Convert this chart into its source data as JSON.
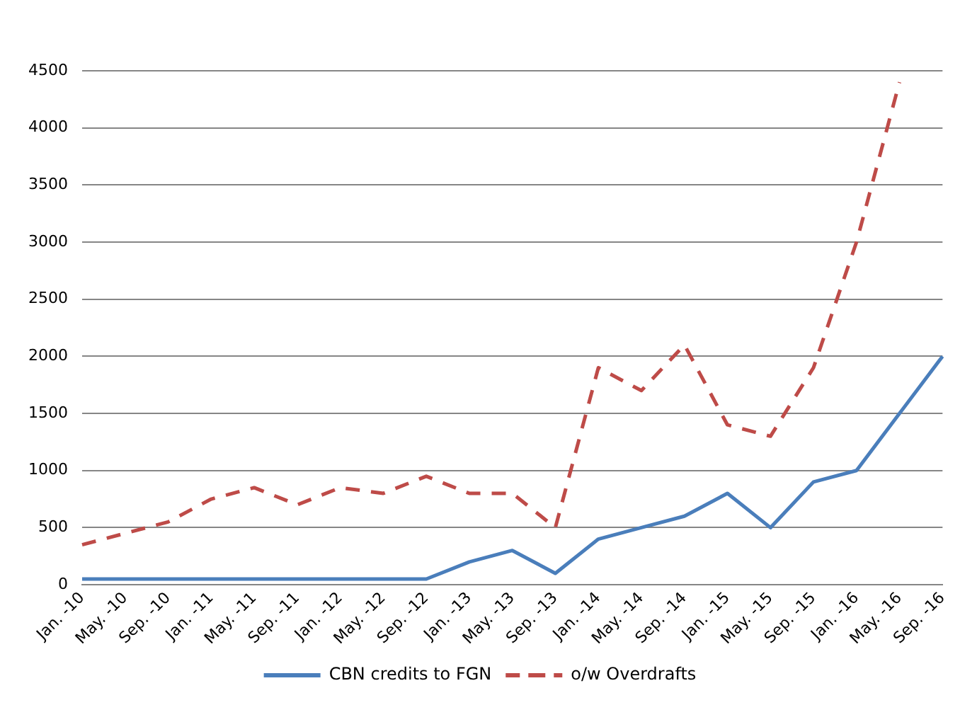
{
  "chart_data": {
    "type": "line",
    "categories": [
      "Jan. -10",
      "May. -10",
      "Sep. -10",
      "Jan. -11",
      "May. -11",
      "Sep. -11",
      "Jan. -12",
      "May. -12",
      "Sep. -12",
      "Jan. -13",
      "May. -13",
      "Sep. -13",
      "Jan. -14",
      "May. -14",
      "Sep. -14",
      "Jan. -15",
      "May. -15",
      "Sep. -15",
      "Jan. -16",
      "May. -16",
      "Sep. -16"
    ],
    "series": [
      {
        "name": "CBN credits to FGN",
        "color": "#4a7ebb",
        "line_style": "solid",
        "values": [
          50,
          50,
          50,
          50,
          50,
          50,
          50,
          50,
          50,
          200,
          300,
          100,
          400,
          500,
          600,
          800,
          500,
          900,
          1000,
          1500,
          2000
        ]
      },
      {
        "name": "o/w Overdrafts",
        "color": "#be4b48",
        "line_style": "dashed",
        "values": [
          350,
          450,
          550,
          750,
          850,
          700,
          850,
          800,
          950,
          800,
          800,
          500,
          1900,
          1700,
          2100,
          1400,
          1300,
          1900,
          3000,
          4400,
          null
        ]
      }
    ],
    "ylim": [
      0,
      4500
    ],
    "yticks": [
      0,
      500,
      1000,
      1500,
      2000,
      2500,
      3000,
      3500,
      4000,
      4500
    ],
    "grid": "y",
    "legend": "bottom",
    "marker": "none"
  }
}
